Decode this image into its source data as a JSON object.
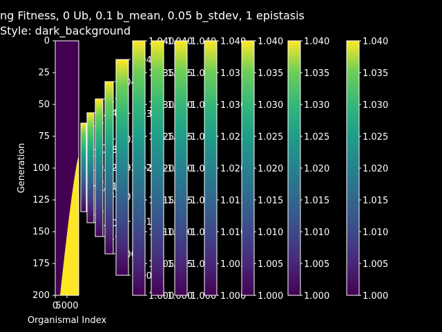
{
  "chart_data": {
    "type": "heatmap",
    "style": "dark_background",
    "colormap": "viridis",
    "title_lines": [
      "ng Fitness, 0 Ub, 0.1 b_mean, 0.05 b_stdev, 1 epistasis",
      "Style: dark_background"
    ],
    "xlabel": "Organismal Index",
    "ylabel": "Generation",
    "ylim": [
      200,
      0
    ],
    "yticks": [
      0,
      25,
      50,
      75,
      100,
      125,
      150,
      175,
      200
    ],
    "xticks": [
      "0",
      "5000"
    ],
    "heatmap": {
      "description": "fitness of organisms per generation; bright (1.040) region grows to the left as generations advance",
      "boundary_generation_at_start": 90,
      "boundary_generation_at_end": 200,
      "vmin": 1.0,
      "vmax": 1.04,
      "low_color": "#440154",
      "high_color": "#fde725"
    },
    "colorbars": [
      {
        "ticks": [
          "1.00",
          "1.01",
          "1.01",
          "1.01"
        ],
        "mid": "1.01"
      },
      {
        "ticks": [
          "1.00",
          "1.01",
          "1.03",
          "1.04"
        ],
        "mid": "1.02"
      },
      {
        "ticks": [
          "1.00",
          "1.01",
          "1.03",
          "1.04"
        ],
        "mid": "1.02"
      },
      {
        "ticks": [
          "1.00",
          "1.01",
          "1.03",
          "1.04"
        ],
        "mid": "1.02"
      },
      {
        "ticks": [
          "1.00",
          "1.01",
          "1.02",
          "1.03",
          "1.04"
        ],
        "mid": "1.02"
      },
      {
        "ticks": [
          "1.000",
          "1.005",
          "1.010",
          "1.015",
          "1.020",
          "1.025",
          "1.030",
          "1.035",
          "1.040"
        ]
      },
      {
        "ticks": [
          "1.000",
          "1.005",
          "1.010",
          "1.015",
          "1.020",
          "1.025",
          "1.030",
          "1.035",
          "1.040"
        ]
      },
      {
        "ticks": [
          "1.000",
          "1.005",
          "1.010",
          "1.015",
          "1.020",
          "1.025",
          "1.030",
          "1.035",
          "1.040"
        ]
      },
      {
        "ticks": [
          "1.000",
          "1.005",
          "1.010",
          "1.015",
          "1.020",
          "1.025",
          "1.030",
          "1.035",
          "1.040"
        ]
      },
      {
        "ticks": [
          "1.000",
          "1.005",
          "1.010",
          "1.015",
          "1.020",
          "1.025",
          "1.030",
          "1.035",
          "1.040"
        ]
      },
      {
        "ticks": [
          "1.000",
          "1.005",
          "1.010",
          "1.015",
          "1.020",
          "1.025",
          "1.030",
          "1.035",
          "1.040"
        ]
      },
      {
        "ticks": [
          "1.000",
          "1.005",
          "1.010",
          "1.015",
          "1.020",
          "1.025",
          "1.030",
          "1.035",
          "1.040"
        ]
      },
      {
        "ticks": [
          "1.000",
          "1.005",
          "1.010",
          "1.015",
          "1.020",
          "1.025",
          "1.030",
          "1.035",
          "1.040"
        ]
      }
    ]
  }
}
